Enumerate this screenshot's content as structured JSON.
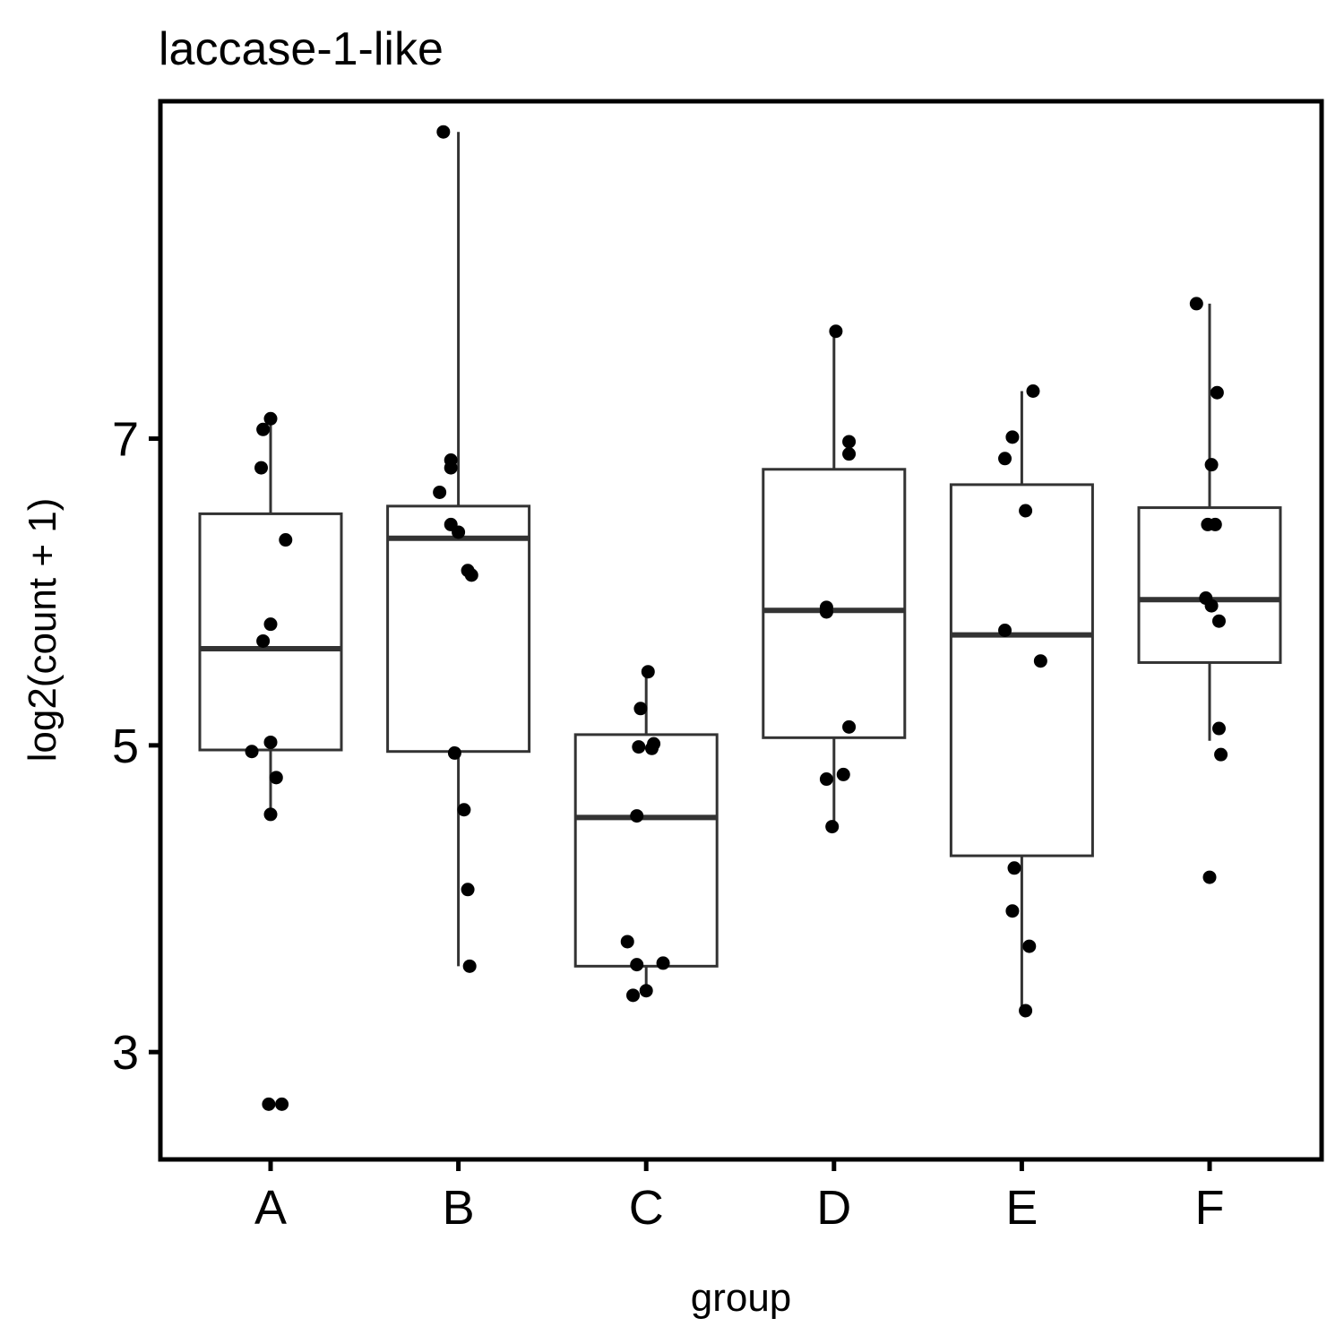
{
  "chart_data": {
    "type": "box",
    "title": "laccase-1-like",
    "xlabel": "group",
    "ylabel": "log2(count + 1)",
    "ylim": [
      2.3,
      9.2
    ],
    "yticks": [
      "3",
      "5",
      "7"
    ],
    "grid": false,
    "legend": "none",
    "categories": [
      "A",
      "B",
      "C",
      "D",
      "E",
      "F"
    ],
    "boxes": [
      {
        "group": "A",
        "lower_whisker": 4.55,
        "q1": 4.97,
        "median": 5.63,
        "q3": 6.51,
        "upper_whisker": 7.13
      },
      {
        "group": "B",
        "lower_whisker": 3.56,
        "q1": 4.96,
        "median": 6.35,
        "q3": 6.56,
        "upper_whisker": 9.0
      },
      {
        "group": "C",
        "lower_whisker": 3.37,
        "q1": 3.56,
        "median": 4.53,
        "q3": 5.07,
        "upper_whisker": 5.48
      },
      {
        "group": "D",
        "lower_whisker": 4.47,
        "q1": 5.05,
        "median": 5.88,
        "q3": 6.8,
        "upper_whisker": 7.7
      },
      {
        "group": "E",
        "lower_whisker": 3.27,
        "q1": 4.28,
        "median": 5.72,
        "q3": 6.7,
        "upper_whisker": 7.31
      },
      {
        "group": "F",
        "lower_whisker": 5.03,
        "q1": 5.54,
        "median": 5.95,
        "q3": 6.55,
        "upper_whisker": 7.88
      }
    ],
    "points": [
      {
        "group": "A",
        "y": 7.13,
        "jitter": 0.0
      },
      {
        "group": "A",
        "y": 7.06,
        "jitter": -0.04
      },
      {
        "group": "A",
        "y": 6.81,
        "jitter": -0.05
      },
      {
        "group": "A",
        "y": 6.34,
        "jitter": 0.08
      },
      {
        "group": "A",
        "y": 5.79,
        "jitter": 0.0
      },
      {
        "group": "A",
        "y": 5.68,
        "jitter": -0.04
      },
      {
        "group": "A",
        "y": 5.02,
        "jitter": 0.0
      },
      {
        "group": "A",
        "y": 4.96,
        "jitter": -0.1
      },
      {
        "group": "A",
        "y": 4.79,
        "jitter": 0.03
      },
      {
        "group": "A",
        "y": 4.55,
        "jitter": 0.0
      },
      {
        "group": "A",
        "y": 2.66,
        "jitter": -0.01
      },
      {
        "group": "A",
        "y": 2.66,
        "jitter": 0.06
      },
      {
        "group": "B",
        "y": 9.0,
        "jitter": -0.08
      },
      {
        "group": "B",
        "y": 6.86,
        "jitter": -0.04
      },
      {
        "group": "B",
        "y": 6.81,
        "jitter": -0.04
      },
      {
        "group": "B",
        "y": 6.65,
        "jitter": -0.1
      },
      {
        "group": "B",
        "y": 6.44,
        "jitter": -0.04
      },
      {
        "group": "B",
        "y": 6.39,
        "jitter": 0.0
      },
      {
        "group": "B",
        "y": 6.14,
        "jitter": 0.05
      },
      {
        "group": "B",
        "y": 6.11,
        "jitter": 0.07
      },
      {
        "group": "B",
        "y": 4.95,
        "jitter": -0.02
      },
      {
        "group": "B",
        "y": 4.58,
        "jitter": 0.03
      },
      {
        "group": "B",
        "y": 4.06,
        "jitter": 0.05
      },
      {
        "group": "B",
        "y": 3.56,
        "jitter": 0.06
      },
      {
        "group": "C",
        "y": 5.48,
        "jitter": 0.01
      },
      {
        "group": "C",
        "y": 5.24,
        "jitter": -0.03
      },
      {
        "group": "C",
        "y": 5.01,
        "jitter": 0.04
      },
      {
        "group": "C",
        "y": 4.99,
        "jitter": -0.04
      },
      {
        "group": "C",
        "y": 4.98,
        "jitter": 0.03
      },
      {
        "group": "C",
        "y": 4.54,
        "jitter": -0.05
      },
      {
        "group": "C",
        "y": 3.72,
        "jitter": -0.1
      },
      {
        "group": "C",
        "y": 3.57,
        "jitter": -0.05
      },
      {
        "group": "C",
        "y": 3.58,
        "jitter": 0.09
      },
      {
        "group": "C",
        "y": 3.4,
        "jitter": 0.0
      },
      {
        "group": "C",
        "y": 3.37,
        "jitter": -0.07
      },
      {
        "group": "D",
        "y": 7.7,
        "jitter": 0.01
      },
      {
        "group": "D",
        "y": 6.98,
        "jitter": 0.08
      },
      {
        "group": "D",
        "y": 6.9,
        "jitter": 0.08
      },
      {
        "group": "D",
        "y": 5.9,
        "jitter": -0.04
      },
      {
        "group": "D",
        "y": 5.87,
        "jitter": -0.04
      },
      {
        "group": "D",
        "y": 5.12,
        "jitter": 0.08
      },
      {
        "group": "D",
        "y": 4.81,
        "jitter": 0.05
      },
      {
        "group": "D",
        "y": 4.78,
        "jitter": -0.04
      },
      {
        "group": "D",
        "y": 4.47,
        "jitter": -0.01
      },
      {
        "group": "E",
        "y": 7.31,
        "jitter": 0.06
      },
      {
        "group": "E",
        "y": 7.01,
        "jitter": -0.05
      },
      {
        "group": "E",
        "y": 6.87,
        "jitter": -0.09
      },
      {
        "group": "E",
        "y": 6.53,
        "jitter": 0.02
      },
      {
        "group": "E",
        "y": 5.75,
        "jitter": -0.09
      },
      {
        "group": "E",
        "y": 5.55,
        "jitter": 0.1
      },
      {
        "group": "E",
        "y": 4.2,
        "jitter": -0.04
      },
      {
        "group": "E",
        "y": 3.92,
        "jitter": -0.05
      },
      {
        "group": "E",
        "y": 3.69,
        "jitter": 0.04
      },
      {
        "group": "E",
        "y": 3.27,
        "jitter": 0.02
      },
      {
        "group": "F",
        "y": 7.88,
        "jitter": -0.07
      },
      {
        "group": "F",
        "y": 7.3,
        "jitter": 0.04
      },
      {
        "group": "F",
        "y": 6.83,
        "jitter": 0.01
      },
      {
        "group": "F",
        "y": 6.44,
        "jitter": -0.01
      },
      {
        "group": "F",
        "y": 6.44,
        "jitter": 0.03
      },
      {
        "group": "F",
        "y": 5.96,
        "jitter": -0.02
      },
      {
        "group": "F",
        "y": 5.91,
        "jitter": 0.01
      },
      {
        "group": "F",
        "y": 5.81,
        "jitter": 0.05
      },
      {
        "group": "F",
        "y": 5.11,
        "jitter": 0.05
      },
      {
        "group": "F",
        "y": 4.94,
        "jitter": 0.06
      },
      {
        "group": "F",
        "y": 4.14,
        "jitter": 0.0
      }
    ],
    "colors": {
      "box_stroke": "#333333",
      "box_fill": "#ffffff",
      "point": "#000000",
      "panel_border": "#000000"
    }
  }
}
